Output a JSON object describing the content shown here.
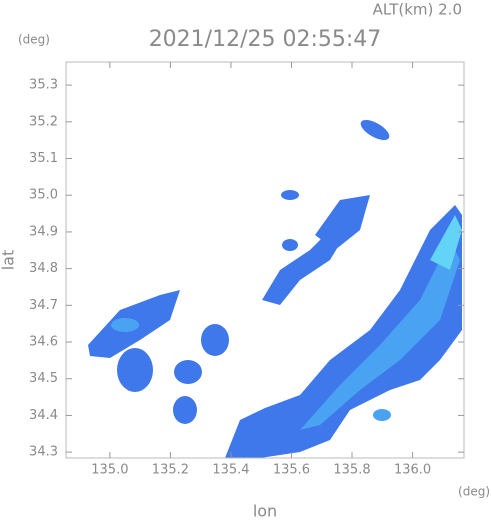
{
  "chart_data": {
    "type": "map",
    "title": "2021/12/25 02:55:47",
    "annotation": "ALT(km) 2.0",
    "y_unit": "(deg)",
    "x_unit": "(deg)",
    "xlabel": "lon",
    "ylabel": "lat",
    "xlim": [
      134.855,
      136.17
    ],
    "ylim": [
      34.284,
      35.363
    ],
    "xticks": [
      {
        "value": 135.0,
        "label": "135.0"
      },
      135.2,
      135.4,
      135.6,
      135.8,
      {
        "value": 136.0,
        "label": "136.0"
      }
    ],
    "yticks": [
      34.3,
      34.4,
      34.5,
      34.6,
      34.7,
      34.8,
      34.9,
      {
        "value": 35.0,
        "label": "35.0"
      },
      35.1,
      35.2,
      35.3
    ]
  }
}
